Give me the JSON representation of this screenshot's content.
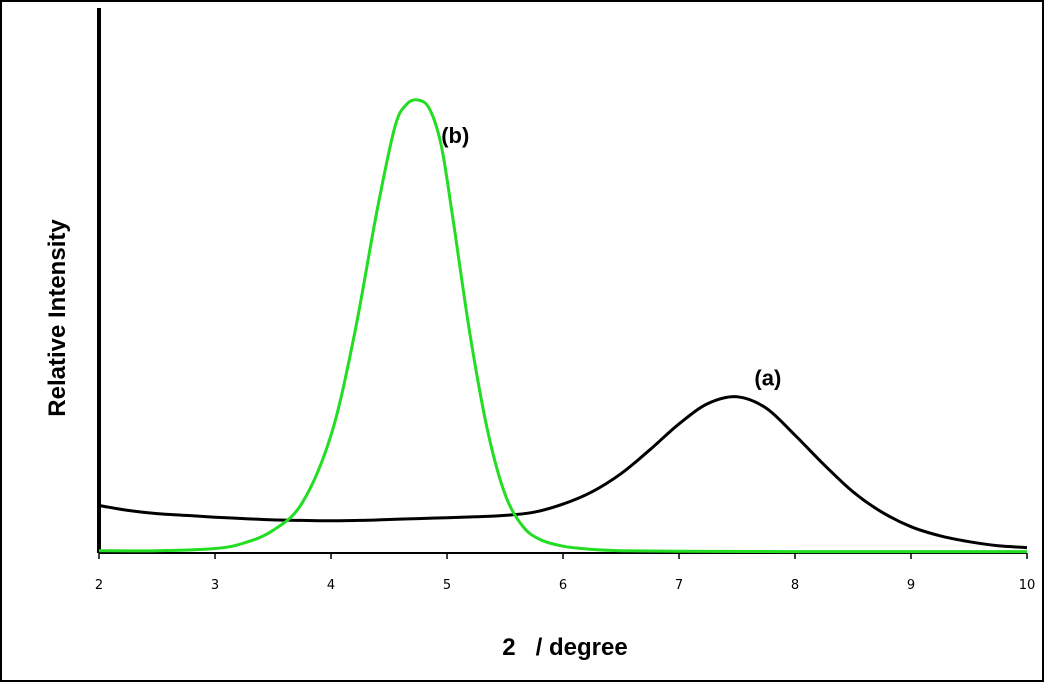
{
  "chart_data": {
    "type": "line",
    "title": "",
    "xlabel": "2   / degree",
    "ylabel": "Relative Intensity",
    "xlim": [
      2,
      10
    ],
    "ylim": [
      0,
      1
    ],
    "xticks": [
      "2",
      "3",
      "4",
      "5",
      "6",
      "7",
      "8",
      "9",
      "10"
    ],
    "grid": false,
    "series": [
      {
        "name": "(a)",
        "color": "#000000",
        "x": [
          2.0,
          2.25,
          2.5,
          2.75,
          3.0,
          3.25,
          3.5,
          3.75,
          4.0,
          4.25,
          4.5,
          4.75,
          5.0,
          5.25,
          5.5,
          5.75,
          6.0,
          6.25,
          6.5,
          6.75,
          7.0,
          7.25,
          7.5,
          7.75,
          8.0,
          8.25,
          8.5,
          8.75,
          9.0,
          9.25,
          9.5,
          9.75,
          10.0
        ],
        "y": [
          0.105,
          0.094,
          0.087,
          0.083,
          0.079,
          0.076,
          0.073,
          0.072,
          0.071,
          0.072,
          0.074,
          0.076,
          0.078,
          0.08,
          0.083,
          0.09,
          0.108,
          0.135,
          0.175,
          0.228,
          0.285,
          0.33,
          0.345,
          0.32,
          0.26,
          0.195,
          0.135,
          0.09,
          0.058,
          0.038,
          0.025,
          0.016,
          0.012
        ]
      },
      {
        "name": "(b)",
        "color": "#22dd22",
        "x": [
          2.0,
          2.5,
          3.0,
          3.25,
          3.5,
          3.75,
          4.0,
          4.2,
          4.4,
          4.55,
          4.65,
          4.75,
          4.85,
          4.95,
          5.05,
          5.2,
          5.35,
          5.5,
          5.65,
          5.8,
          6.0,
          6.25,
          6.5,
          7.0,
          8.0,
          9.0,
          10.0
        ],
        "y": [
          0.005,
          0.005,
          0.01,
          0.022,
          0.05,
          0.11,
          0.26,
          0.48,
          0.76,
          0.94,
          0.99,
          1.0,
          0.98,
          0.9,
          0.74,
          0.48,
          0.27,
          0.13,
          0.06,
          0.03,
          0.015,
          0.008,
          0.005,
          0.004,
          0.003,
          0.003,
          0.003
        ]
      }
    ],
    "annotations": [
      {
        "text": "(a)",
        "x": 7.65,
        "y": 0.37
      },
      {
        "text": "(b)",
        "x": 4.95,
        "y": 0.905
      }
    ]
  }
}
